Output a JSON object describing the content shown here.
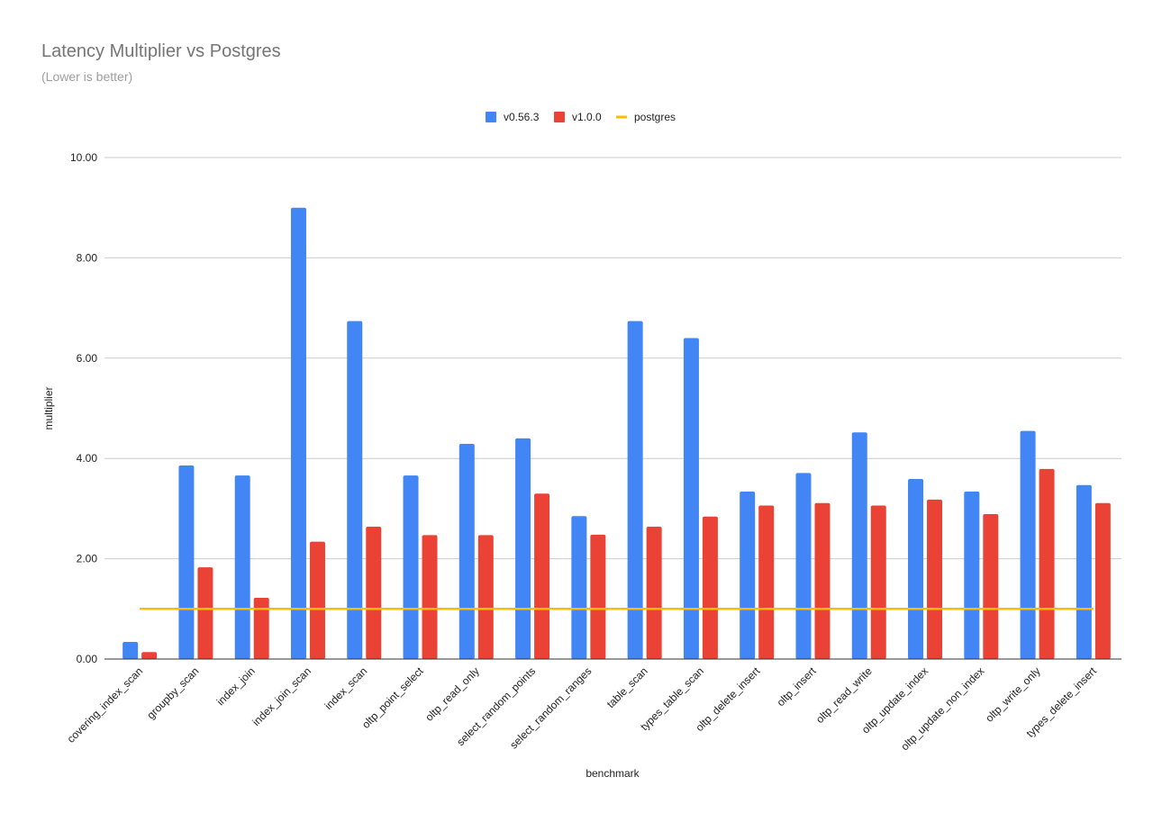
{
  "chart_data": {
    "type": "bar",
    "title": "Latency Multiplier vs Postgres",
    "subtitle": "(Lower is better)",
    "xlabel": "benchmark",
    "ylabel": "multiplier",
    "ylim": [
      0,
      10
    ],
    "yticks": [
      "0.00",
      "2.00",
      "4.00",
      "6.00",
      "8.00",
      "10.00"
    ],
    "grid": true,
    "legend_position": "top-center",
    "categories": [
      "covering_index_scan",
      "groupby_scan",
      "index_join",
      "index_join_scan",
      "index_scan",
      "oltp_point_select",
      "oltp_read_only",
      "select_random_points",
      "select_random_ranges",
      "table_scan",
      "types_table_scan",
      "oltp_delete_insert",
      "oltp_insert",
      "oltp_read_write",
      "oltp_update_index",
      "oltp_update_non_index",
      "oltp_write_only",
      "types_delete_insert"
    ],
    "series": [
      {
        "name": "v0.56.3",
        "kind": "bar",
        "color": "#4285f4",
        "values": [
          0.34,
          3.86,
          3.66,
          9.0,
          6.74,
          3.66,
          4.29,
          4.4,
          2.85,
          6.74,
          6.4,
          3.34,
          3.71,
          4.52,
          3.59,
          3.34,
          4.55,
          3.47
        ]
      },
      {
        "name": "v1.0.0",
        "kind": "bar",
        "color": "#ea4335",
        "values": [
          0.14,
          1.83,
          1.22,
          2.34,
          2.64,
          2.47,
          2.47,
          3.3,
          2.48,
          2.64,
          2.84,
          3.06,
          3.11,
          3.06,
          3.18,
          2.89,
          3.79,
          3.11
        ]
      },
      {
        "name": "postgres",
        "kind": "line",
        "color": "#fbbc04",
        "values": [
          1,
          1,
          1,
          1,
          1,
          1,
          1,
          1,
          1,
          1,
          1,
          1,
          1,
          1,
          1,
          1,
          1,
          1
        ]
      }
    ]
  }
}
